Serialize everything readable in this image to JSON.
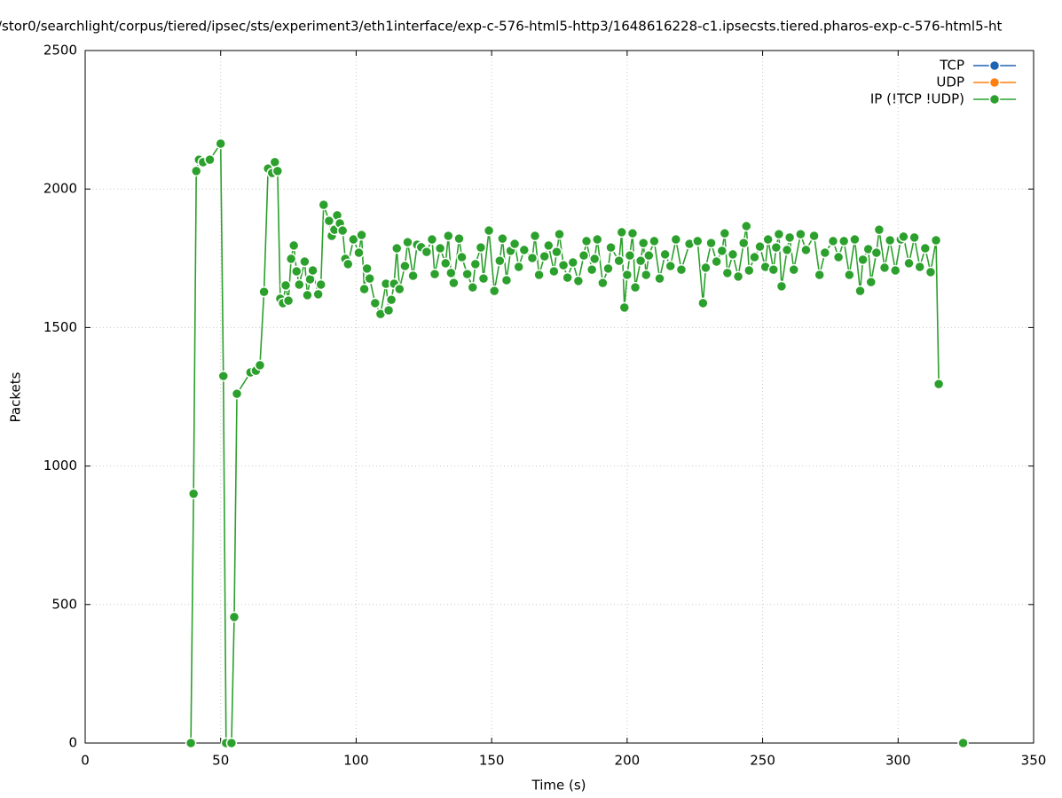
{
  "chart_data": {
    "type": "line",
    "title": "/stor0/searchlight/corpus/tiered/ipsec/sts/experiment3/eth1interface/exp-c-576-html5-http3/1648616228-c1.ipsecsts.tiered.pharos-exp-c-576-html5-ht",
    "x_label": "Time (s)",
    "y_label": "Packets",
    "xlim": [
      0,
      350
    ],
    "xticks": [
      0,
      50,
      100,
      150,
      200,
      250,
      300,
      350
    ],
    "ylim": [
      0,
      2500
    ],
    "yticks": [
      0,
      500,
      1000,
      1500,
      2000,
      2500
    ],
    "grid": true,
    "legend": "top-right",
    "series": [
      {
        "name": "TCP",
        "color": "#1f64b4",
        "x": [],
        "values": []
      },
      {
        "name": "UDP",
        "color": "#ff7f0e",
        "x": [],
        "values": []
      },
      {
        "name": "IP (!TCP  !UDP)",
        "color": "#2ca02c",
        "x": [
          39,
          40,
          41,
          42,
          43.5,
          46,
          50,
          51,
          52,
          54,
          55,
          56,
          61,
          63,
          64.5,
          66,
          67.5,
          69,
          70,
          71,
          72,
          73,
          74,
          75,
          76,
          77,
          78,
          79,
          81,
          82,
          83,
          84,
          86,
          87,
          88,
          90,
          91,
          92,
          93,
          94,
          95,
          96,
          97,
          99,
          101,
          102,
          103,
          104,
          105,
          107,
          109,
          111,
          112,
          113,
          114,
          115,
          116,
          118,
          119,
          121,
          122.5,
          124,
          126,
          128,
          129,
          131,
          133,
          134,
          135,
          136,
          138,
          139,
          141,
          143,
          144,
          146,
          147,
          149,
          151,
          153,
          154,
          155.5,
          157,
          158.5,
          160,
          162,
          165,
          166,
          167.5,
          169.5,
          171,
          173,
          174,
          175,
          176.5,
          178,
          180,
          182,
          184,
          185,
          187,
          188,
          189,
          191,
          193,
          194,
          197,
          198,
          199,
          200,
          201,
          202,
          203,
          205,
          206,
          207,
          208,
          210,
          212,
          214,
          216,
          218,
          220,
          223,
          226,
          228,
          229,
          231,
          233,
          235,
          236,
          237,
          239,
          241,
          243,
          244,
          245,
          247,
          249,
          251,
          252,
          254,
          255,
          256,
          257,
          259,
          260,
          261.5,
          264,
          266,
          269,
          271,
          273,
          276,
          278,
          280,
          282,
          284,
          286,
          287,
          289,
          290,
          292,
          293,
          295,
          297,
          299,
          301,
          302,
          304,
          306,
          308,
          310,
          312,
          314,
          315,
          319,
          324
        ],
        "values": [
          0,
          900,
          2065,
          2106,
          2097,
          2106,
          2164,
          1325,
          0,
          0,
          455,
          1261,
          1338,
          1344,
          1364,
          1629,
          2074,
          2058,
          2097,
          2065,
          1604,
          1588,
          1652,
          1597,
          1748,
          1796,
          1703,
          1655,
          1738,
          1617,
          1674,
          1706,
          1620,
          1655,
          1943,
          1885,
          1831,
          1853,
          1905,
          1876,
          1850,
          1748,
          1729,
          1818,
          1770,
          1834,
          1639,
          1713,
          1677,
          1588,
          1549,
          1658,
          1562,
          1600,
          1658,
          1786,
          1639,
          1722,
          1808,
          1687,
          1799,
          1790,
          1773,
          1818,
          1693,
          1786,
          1732,
          1831,
          1697,
          1661,
          1821,
          1754,
          1693,
          1645,
          1729,
          1789,
          1677,
          1850,
          1632,
          1741,
          1821,
          1671,
          1777,
          1802,
          1719,
          1780,
          1751,
          1831,
          1690,
          1757,
          1796,
          1703,
          1773,
          1837,
          1725,
          1680,
          1735,
          1668,
          1760,
          1812,
          1709,
          1748,
          1818,
          1661,
          1713,
          1789,
          1741,
          1844,
          1572,
          1690,
          1760,
          1840,
          1645,
          1741,
          1805,
          1690,
          1760,
          1812,
          1677,
          1764,
          1722,
          1818,
          1709,
          1802,
          1812,
          1588,
          1716,
          1805,
          1738,
          1777,
          1840,
          1697,
          1764,
          1684,
          1805,
          1866,
          1706,
          1754,
          1792,
          1719,
          1818,
          1709,
          1789,
          1837,
          1649,
          1780,
          1825,
          1709,
          1837,
          1780,
          1831,
          1690,
          1770,
          1812,
          1754,
          1812,
          1690,
          1818,
          1632,
          1745,
          1783,
          1664,
          1770,
          1853,
          1716,
          1815,
          1706,
          1818,
          1828,
          1732,
          1825,
          1719,
          1786,
          1700,
          1815,
          1296,
          null,
          0
        ]
      }
    ]
  }
}
